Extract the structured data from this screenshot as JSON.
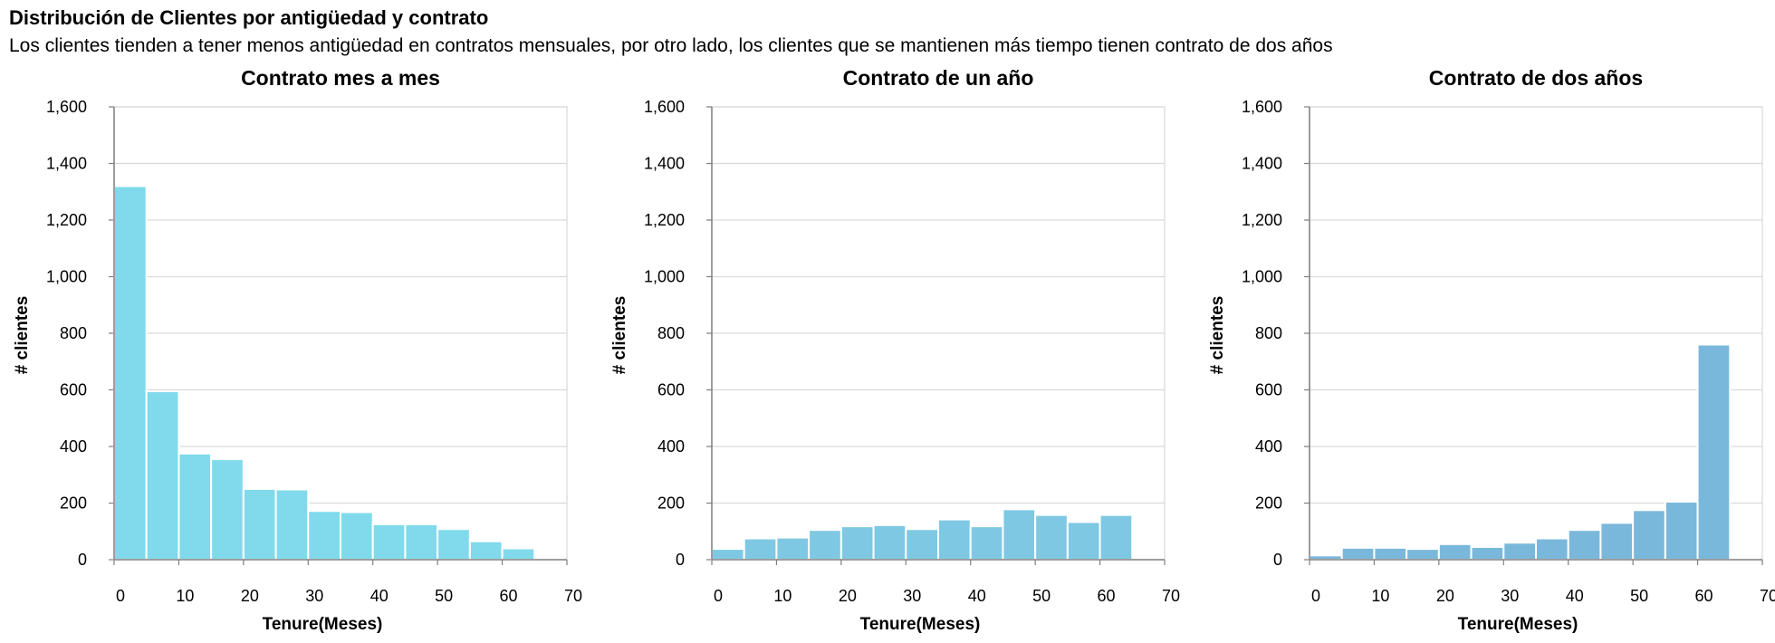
{
  "header": {
    "title": "Distribución de Clientes por antigüedad y contrato",
    "subtitle": "Los clientes tienden a tener menos antigüedad en contratos mensuales, por otro lado, los clientes que se mantienen más tiempo tienen contrato de dos años"
  },
  "chart_data": [
    {
      "type": "bar",
      "title": "Contrato mes a mes",
      "xlabel": "Tenure(Meses)",
      "ylabel": "# clientes",
      "xlim": [
        0,
        70
      ],
      "ylim": [
        0,
        1600
      ],
      "xticks": [
        "0",
        "10",
        "20",
        "30",
        "40",
        "50",
        "60",
        "70"
      ],
      "yticks": [
        "0",
        "200",
        "400",
        "600",
        "800",
        "1,000",
        "1,200",
        "1,400",
        "1,600"
      ],
      "grid": true,
      "color": "#80DAEB",
      "bin_width": 5,
      "bins": [
        0,
        5,
        10,
        15,
        20,
        25,
        30,
        35,
        40,
        45,
        50,
        55,
        60
      ],
      "values": [
        1320,
        595,
        375,
        355,
        250,
        248,
        172,
        168,
        125,
        125,
        108,
        65,
        40
      ]
    },
    {
      "type": "bar",
      "title": "Contrato de un año",
      "xlabel": "Tenure(Meses)",
      "ylabel": "# clientes",
      "xlim": [
        0,
        70
      ],
      "ylim": [
        0,
        1600
      ],
      "xticks": [
        "0",
        "10",
        "20",
        "30",
        "40",
        "50",
        "60",
        "70"
      ],
      "yticks": [
        "0",
        "200",
        "400",
        "600",
        "800",
        "1,000",
        "1,200",
        "1,400",
        "1,600"
      ],
      "grid": true,
      "color": "#7EC8E3",
      "bin_width": 5,
      "bins": [
        0,
        5,
        10,
        15,
        20,
        25,
        30,
        35,
        40,
        45,
        50,
        55,
        60
      ],
      "values": [
        38,
        75,
        78,
        105,
        118,
        122,
        108,
        142,
        118,
        178,
        158,
        133,
        158
      ]
    },
    {
      "type": "bar",
      "title": "Contrato de dos años",
      "xlabel": "Tenure(Meses)",
      "ylabel": "# clientes",
      "xlim": [
        0,
        70
      ],
      "ylim": [
        0,
        1600
      ],
      "xticks": [
        "0",
        "10",
        "20",
        "30",
        "40",
        "50",
        "60",
        "70"
      ],
      "yticks": [
        "0",
        "200",
        "400",
        "600",
        "800",
        "1,000",
        "1,200",
        "1,400",
        "1,600"
      ],
      "grid": true,
      "color": "#7AB8DB",
      "bin_width": 5,
      "bins": [
        0,
        5,
        10,
        15,
        20,
        25,
        30,
        35,
        40,
        45,
        50,
        55,
        60
      ],
      "values": [
        15,
        42,
        42,
        38,
        55,
        45,
        60,
        75,
        105,
        130,
        175,
        205,
        760
      ]
    }
  ]
}
